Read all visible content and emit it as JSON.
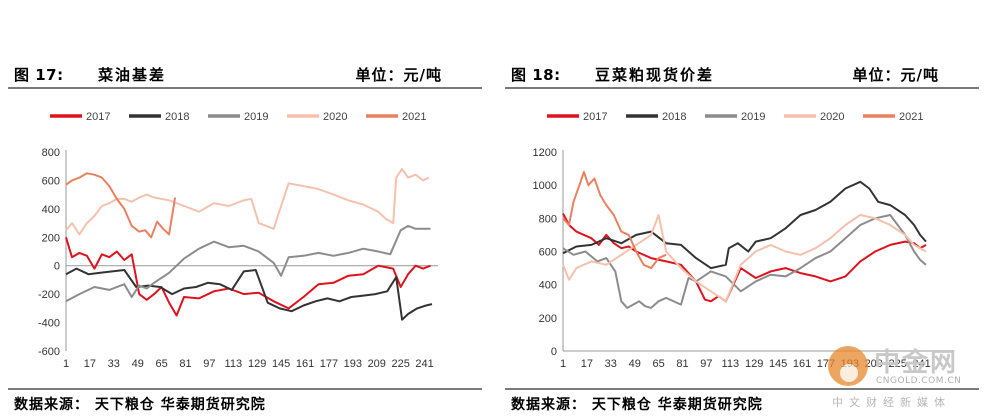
{
  "figures": [
    {
      "number": "图 17:",
      "title": "菜油基差",
      "unit": "单位：元/吨",
      "source": "数据来源： 天下粮仓 华泰期货研究院"
    },
    {
      "number": "图 18:",
      "title": "豆菜粕现货价差",
      "unit": "单位：元/吨",
      "source": "数据来源： 天下粮仓 华泰期货研究院"
    }
  ],
  "watermark": {
    "name": "中金网",
    "url": "CNGOLD.COM.CN",
    "tagline": "中文财经新媒体"
  },
  "chart_data": [
    {
      "type": "line",
      "title": "菜油基差",
      "x_ticks": [
        1,
        17,
        33,
        49,
        65,
        81,
        97,
        113,
        129,
        145,
        161,
        177,
        193,
        209,
        225,
        241
      ],
      "xlim": [
        1,
        250
      ],
      "ylim": [
        -600,
        800
      ],
      "y_ticks": [
        -600,
        -400,
        -200,
        0,
        200,
        400,
        600,
        800
      ],
      "legend_position": "top",
      "series": [
        {
          "name": "2017",
          "color": "#e0121e",
          "x": [
            1,
            5,
            10,
            15,
            20,
            25,
            30,
            35,
            40,
            45,
            50,
            55,
            60,
            65,
            70,
            75,
            80,
            90,
            100,
            110,
            120,
            130,
            140,
            150,
            160,
            170,
            180,
            190,
            200,
            210,
            220,
            225,
            230,
            235,
            240,
            245
          ],
          "y": [
            200,
            60,
            90,
            70,
            -20,
            80,
            60,
            100,
            40,
            80,
            -200,
            -240,
            -200,
            -150,
            -260,
            -350,
            -220,
            -230,
            -180,
            -160,
            -200,
            -190,
            -250,
            -300,
            -220,
            -130,
            -120,
            -70,
            -60,
            0,
            -20,
            -150,
            -60,
            0,
            -20,
            0
          ]
        },
        {
          "name": "2018",
          "color": "#333333",
          "x": [
            1,
            8,
            16,
            24,
            32,
            40,
            48,
            56,
            64,
            72,
            80,
            88,
            96,
            104,
            112,
            120,
            128,
            136,
            144,
            152,
            160,
            168,
            176,
            184,
            192,
            200,
            208,
            216,
            222,
            226,
            230,
            236,
            242,
            246
          ],
          "y": [
            -60,
            -20,
            -60,
            -50,
            -40,
            -30,
            -150,
            -140,
            -150,
            -200,
            -160,
            -150,
            -120,
            -130,
            -170,
            -40,
            -30,
            -260,
            -300,
            -320,
            -280,
            -250,
            -230,
            -250,
            -220,
            -210,
            -200,
            -180,
            -80,
            -380,
            -340,
            -300,
            -280,
            -270
          ]
        },
        {
          "name": "2019",
          "color": "#8c8c8c",
          "x": [
            1,
            10,
            20,
            30,
            40,
            45,
            50,
            55,
            60,
            70,
            80,
            90,
            100,
            110,
            120,
            130,
            140,
            145,
            150,
            160,
            170,
            180,
            190,
            200,
            210,
            218,
            225,
            230,
            235,
            245
          ],
          "y": [
            -250,
            -200,
            -150,
            -170,
            -130,
            -220,
            -140,
            -160,
            -120,
            -50,
            50,
            120,
            170,
            130,
            140,
            100,
            20,
            -70,
            60,
            70,
            90,
            70,
            90,
            120,
            100,
            80,
            250,
            280,
            260,
            260
          ]
        },
        {
          "name": "2020",
          "color": "#f5c1ac",
          "x": [
            1,
            5,
            10,
            15,
            20,
            25,
            30,
            35,
            40,
            45,
            50,
            55,
            60,
            70,
            80,
            90,
            100,
            110,
            120,
            125,
            130,
            140,
            145,
            150,
            160,
            170,
            180,
            190,
            200,
            210,
            215,
            220,
            222,
            226,
            230,
            235,
            240,
            244
          ],
          "y": [
            250,
            300,
            220,
            300,
            350,
            420,
            440,
            470,
            470,
            450,
            480,
            500,
            480,
            460,
            420,
            380,
            440,
            420,
            460,
            470,
            300,
            260,
            420,
            580,
            560,
            540,
            500,
            460,
            430,
            380,
            330,
            300,
            620,
            680,
            620,
            640,
            600,
            620
          ]
        },
        {
          "name": "2021",
          "color": "#eb8060",
          "x": [
            1,
            5,
            10,
            15,
            20,
            25,
            30,
            35,
            40,
            45,
            50,
            54,
            58,
            62,
            66,
            70,
            74
          ],
          "y": [
            570,
            600,
            620,
            650,
            640,
            620,
            560,
            470,
            400,
            280,
            240,
            250,
            200,
            310,
            260,
            220,
            480
          ]
        }
      ]
    },
    {
      "type": "line",
      "title": "豆菜粕现货价差",
      "x_ticks": [
        1,
        17,
        33,
        49,
        65,
        81,
        97,
        113,
        129,
        145,
        161,
        177,
        193,
        209,
        225,
        241
      ],
      "xlim": [
        1,
        250
      ],
      "ylim": [
        0,
        1200
      ],
      "y_ticks": [
        0,
        200,
        400,
        600,
        800,
        1000,
        1200
      ],
      "legend_position": "top",
      "series": [
        {
          "name": "2017",
          "color": "#e0121e",
          "x": [
            1,
            5,
            10,
            15,
            20,
            25,
            30,
            35,
            40,
            45,
            50,
            60,
            70,
            80,
            90,
            96,
            100,
            105,
            110,
            115,
            120,
            130,
            140,
            150,
            160,
            170,
            180,
            190,
            200,
            210,
            220,
            230,
            236,
            240,
            244
          ],
          "y": [
            830,
            760,
            720,
            700,
            680,
            640,
            700,
            650,
            620,
            630,
            600,
            560,
            540,
            520,
            420,
            310,
            300,
            330,
            300,
            400,
            500,
            440,
            480,
            500,
            470,
            450,
            420,
            450,
            540,
            600,
            640,
            660,
            650,
            620,
            640
          ]
        },
        {
          "name": "2018",
          "color": "#333333",
          "x": [
            1,
            10,
            20,
            30,
            40,
            50,
            60,
            70,
            80,
            90,
            100,
            110,
            112,
            118,
            125,
            130,
            140,
            150,
            160,
            170,
            180,
            190,
            200,
            206,
            212,
            220,
            230,
            236,
            240,
            244
          ],
          "y": [
            590,
            630,
            640,
            680,
            650,
            700,
            720,
            650,
            640,
            560,
            500,
            520,
            620,
            650,
            600,
            660,
            680,
            740,
            820,
            850,
            900,
            980,
            1020,
            980,
            900,
            880,
            820,
            760,
            700,
            660
          ]
        },
        {
          "name": "2019",
          "color": "#8c8c8c",
          "x": [
            1,
            8,
            16,
            24,
            30,
            36,
            40,
            44,
            48,
            52,
            56,
            60,
            65,
            70,
            80,
            85,
            90,
            100,
            110,
            120,
            130,
            140,
            150,
            160,
            170,
            180,
            190,
            200,
            210,
            220,
            230,
            236,
            240,
            244
          ],
          "y": [
            620,
            580,
            600,
            540,
            560,
            480,
            300,
            260,
            280,
            300,
            270,
            260,
            300,
            320,
            280,
            440,
            420,
            480,
            450,
            360,
            420,
            460,
            450,
            500,
            560,
            600,
            680,
            760,
            800,
            820,
            700,
            600,
            550,
            520
          ]
        },
        {
          "name": "2020",
          "color": "#f5c1ac",
          "x": [
            1,
            5,
            10,
            20,
            30,
            40,
            50,
            60,
            65,
            70,
            80,
            90,
            100,
            110,
            120,
            130,
            140,
            150,
            160,
            170,
            180,
            190,
            200,
            210,
            220,
            230,
            236,
            240,
            244
          ],
          "y": [
            520,
            430,
            500,
            540,
            520,
            580,
            640,
            700,
            820,
            600,
            500,
            420,
            360,
            300,
            520,
            600,
            640,
            600,
            580,
            620,
            680,
            760,
            820,
            800,
            760,
            700,
            640,
            620,
            600
          ]
        },
        {
          "name": "2021",
          "color": "#eb8060",
          "x": [
            1,
            5,
            8,
            12,
            15,
            18,
            22,
            26,
            30,
            35,
            40,
            45,
            50,
            55,
            60,
            65,
            70
          ],
          "y": [
            800,
            760,
            900,
            1000,
            1080,
            1000,
            1040,
            940,
            880,
            820,
            720,
            700,
            600,
            520,
            500,
            560,
            580
          ]
        }
      ]
    }
  ]
}
